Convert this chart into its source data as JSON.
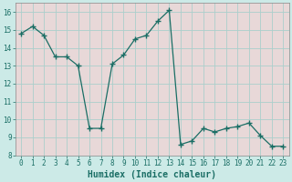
{
  "x": [
    0,
    1,
    2,
    3,
    4,
    5,
    6,
    7,
    8,
    9,
    10,
    11,
    12,
    13,
    14,
    15,
    16,
    17,
    18,
    19,
    20,
    21,
    22,
    23
  ],
  "y": [
    14.8,
    15.2,
    14.7,
    13.5,
    13.5,
    13.0,
    9.5,
    9.5,
    13.1,
    13.6,
    14.5,
    14.7,
    15.5,
    16.1,
    8.6,
    8.8,
    9.5,
    9.3,
    9.5,
    9.6,
    9.8,
    9.1,
    8.5,
    8.5
  ],
  "line_color": "#1a6e65",
  "marker": "+",
  "marker_size": 4,
  "bg_color": "#cceae7",
  "plot_bg_color": "#e8d8d8",
  "grid_color": "#aacfcc",
  "xlabel": "Humidex (Indice chaleur)",
  "xlim": [
    -0.5,
    23.5
  ],
  "ylim": [
    8,
    16.5
  ],
  "yticks": [
    8,
    9,
    10,
    11,
    12,
    13,
    14,
    15,
    16
  ],
  "xticks": [
    0,
    1,
    2,
    3,
    4,
    5,
    6,
    7,
    8,
    9,
    10,
    11,
    12,
    13,
    14,
    15,
    16,
    17,
    18,
    19,
    20,
    21,
    22,
    23
  ],
  "tick_fontsize": 5.5,
  "label_fontsize": 7.0
}
